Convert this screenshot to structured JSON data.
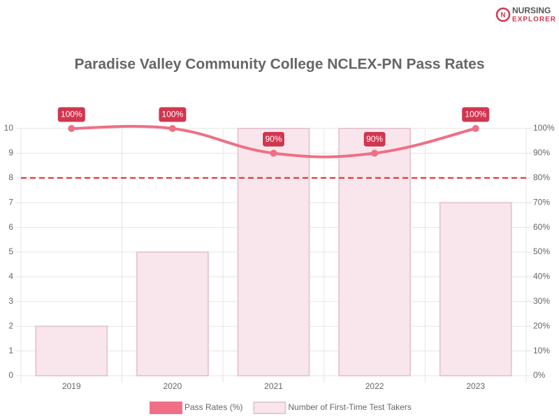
{
  "logo": {
    "line1": "NURSING",
    "line2": "EXPLORER"
  },
  "chart_data": {
    "type": "bar-line",
    "title": "Paradise Valley Community College NCLEX-PN Pass Rates",
    "categories": [
      "2019",
      "2020",
      "2021",
      "2022",
      "2023"
    ],
    "series": [
      {
        "name": "Pass Rates (%)",
        "type": "line",
        "axis": "y2",
        "color": "#ef6f86",
        "values": [
          100,
          100,
          90,
          90,
          100
        ],
        "value_labels": [
          "100%",
          "100%",
          "90%",
          "90%",
          "100%"
        ]
      },
      {
        "name": "Number of First-Time Test Takers",
        "type": "bar",
        "axis": "y",
        "color": "#f9e6ec",
        "values": [
          2,
          5,
          10,
          10,
          7
        ]
      }
    ],
    "ylim": [
      0,
      10
    ],
    "yticks": [
      0,
      1,
      2,
      3,
      4,
      5,
      6,
      7,
      8,
      9,
      10
    ],
    "y2lim": [
      0,
      100
    ],
    "y2ticks": [
      {
        "value": 0,
        "label": "0%"
      },
      {
        "value": 10,
        "label": "10%"
      },
      {
        "value": 20,
        "label": "20%"
      },
      {
        "value": 30,
        "label": "30%"
      },
      {
        "value": 40,
        "label": "40%"
      },
      {
        "value": 50,
        "label": "50%"
      },
      {
        "value": 60,
        "label": "60%"
      },
      {
        "value": 70,
        "label": "70%"
      },
      {
        "value": 80,
        "label": "80%"
      },
      {
        "value": 90,
        "label": "90%"
      },
      {
        "value": 100,
        "label": "100%"
      }
    ],
    "reference_line": {
      "value": 80,
      "axis": "y2",
      "color": "#e02424"
    },
    "grid": true,
    "legend": "bottom"
  }
}
